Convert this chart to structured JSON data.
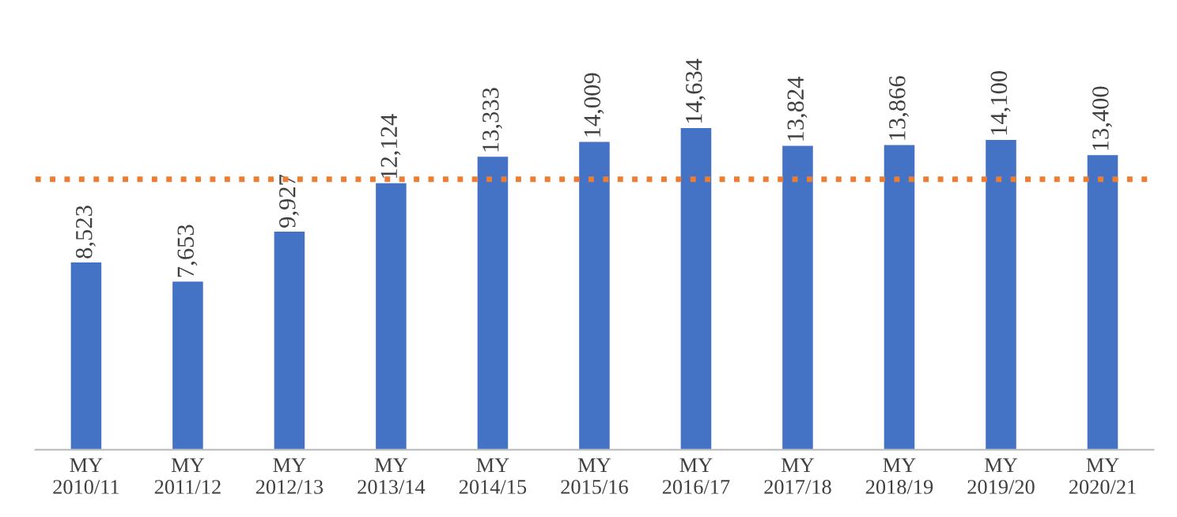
{
  "chart_data": {
    "type": "bar",
    "categories": [
      "MY\n2010/11",
      "MY\n2011/12",
      "MY\n2012/13",
      "MY\n2013/14",
      "MY\n2014/15",
      "MY\n2015/16",
      "MY\n2016/17",
      "MY\n2017/18",
      "MY\n2018/19",
      "MY\n2019/20",
      "MY\n2020/21"
    ],
    "values": [
      8523,
      7653,
      9927,
      12124,
      13333,
      14009,
      14634,
      13824,
      13866,
      14100,
      13400
    ],
    "value_labels": [
      "8,523",
      "7,653",
      "9,927",
      "12,124",
      "13,333",
      "14,009",
      "14,634",
      "13,824",
      "13,866",
      "14,100",
      "13,400"
    ],
    "color": "#4472c4",
    "ref_lines": [
      {
        "axis": "y",
        "value": 12309,
        "color": "#ed7d31",
        "line_style": "dotted"
      }
    ],
    "grid": false,
    "legend": false
  }
}
